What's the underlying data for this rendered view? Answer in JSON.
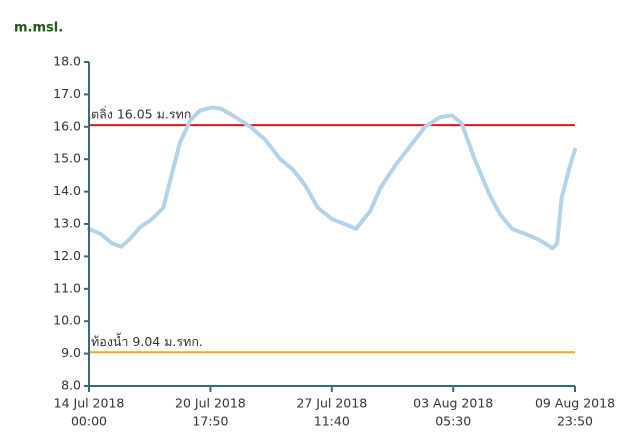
{
  "chart_data": {
    "type": "line",
    "y_axis_label": "m.msl.",
    "x": [
      "2018-07-14T00:00",
      "2018-07-14T15:00",
      "2018-07-15T07:00",
      "2018-07-15T19:00",
      "2018-07-16T07:00",
      "2018-07-16T20:00",
      "2018-07-17T12:00",
      "2018-07-18T03:00",
      "2018-07-18T15:00",
      "2018-07-19T01:00",
      "2018-07-19T15:00",
      "2018-07-20T04:00",
      "2018-07-20T20:00",
      "2018-07-21T09:00",
      "2018-07-22T03:00",
      "2018-07-22T23:00",
      "2018-07-23T19:00",
      "2018-07-24T15:00",
      "2018-07-25T07:00",
      "2018-07-26T00:00",
      "2018-07-26T17:00",
      "2018-07-27T12:00",
      "2018-07-28T05:00",
      "2018-07-28T20:00",
      "2018-07-29T15:00",
      "2018-07-30T04:00",
      "2018-07-31T00:00",
      "2018-07-31T20:00",
      "2018-08-01T16:00",
      "2018-08-02T12:00",
      "2018-08-03T04:00",
      "2018-08-03T17:00",
      "2018-08-04T10:00",
      "2018-08-05T06:00",
      "2018-08-05T20:00",
      "2018-08-06T12:00",
      "2018-08-07T05:00",
      "2018-08-08T01:00",
      "2018-08-08T18:00",
      "2018-08-09T00:00",
      "2018-08-09T06:00",
      "2018-08-09T16:00",
      "2018-08-09T23:50"
    ],
    "series": [
      {
        "color": "#b3d3e8",
        "values": [
          12.85,
          12.7,
          12.4,
          12.3,
          12.55,
          12.9,
          13.15,
          13.5,
          14.6,
          15.5,
          16.2,
          16.5,
          16.6,
          16.55,
          16.3,
          16.0,
          15.6,
          15.0,
          14.7,
          14.2,
          13.5,
          13.15,
          13.0,
          12.85,
          13.4,
          14.1,
          14.8,
          15.4,
          16.0,
          16.3,
          16.35,
          16.1,
          15.0,
          13.9,
          13.3,
          12.85,
          12.7,
          12.5,
          12.25,
          12.4,
          13.8,
          14.7,
          15.3
        ]
      }
    ],
    "reference_lines": [
      {
        "label": "ตลิ่ง 16.05 ม.รทก.",
        "value": 16.05,
        "color": "#e0141e"
      },
      {
        "label": "ท้องน้ำ 9.04 ม.รทก.",
        "value": 9.04,
        "color": "#f2aa1b"
      }
    ],
    "xlim": [
      "2018-07-14T00:00",
      "2018-08-09T23:50"
    ],
    "xticks": [
      {
        "value": "2018-07-14T00:00",
        "label": [
          "14 Jul 2018",
          "00:00"
        ]
      },
      {
        "value": "2018-07-20T17:50",
        "label": [
          "20 Jul 2018",
          "17:50"
        ]
      },
      {
        "value": "2018-07-27T11:40",
        "label": [
          "27 Jul 2018",
          "11:40"
        ]
      },
      {
        "value": "2018-08-03T05:30",
        "label": [
          "03 Aug 2018",
          "05:30"
        ]
      },
      {
        "value": "2018-08-09T23:50",
        "label": [
          "09 Aug 2018",
          "23:50"
        ]
      }
    ],
    "ylim": [
      8,
      18
    ],
    "yticks": [
      {
        "value": 8,
        "label": "8.0"
      },
      {
        "value": 9,
        "label": "9.0"
      },
      {
        "value": 10,
        "label": "10.0"
      },
      {
        "value": 11,
        "label": "11.0"
      },
      {
        "value": 12,
        "label": "12.0"
      },
      {
        "value": 13,
        "label": "13.0"
      },
      {
        "value": 14,
        "label": "14.0"
      },
      {
        "value": 15,
        "label": "15.0"
      },
      {
        "value": 16,
        "label": "16.0"
      },
      {
        "value": 17,
        "label": "17.0"
      },
      {
        "value": 18,
        "label": "18.0"
      }
    ]
  }
}
